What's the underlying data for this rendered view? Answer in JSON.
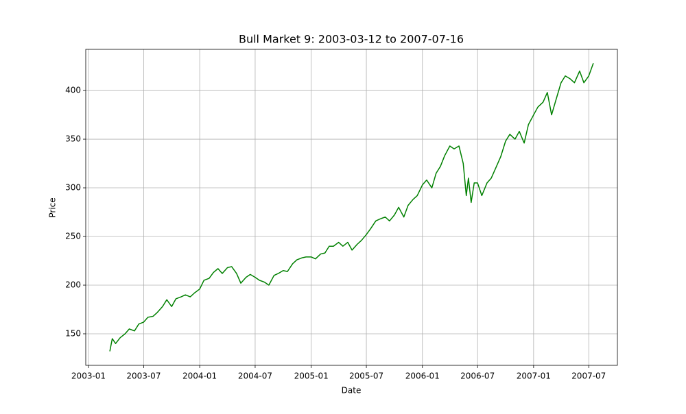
{
  "chart_data": {
    "type": "line",
    "title": "Bull Market 9: 2003-03-12 to 2007-07-16",
    "xlabel": "Date",
    "ylabel": "Price",
    "color": "#008000",
    "grid": true,
    "x": [
      "2003-03-12",
      "2003-03-20",
      "2003-03-31",
      "2003-04-15",
      "2003-05-01",
      "2003-05-15",
      "2003-06-01",
      "2003-06-15",
      "2003-07-01",
      "2003-07-15",
      "2003-08-01",
      "2003-08-15",
      "2003-09-01",
      "2003-09-15",
      "2003-10-01",
      "2003-10-15",
      "2003-11-01",
      "2003-11-15",
      "2003-12-01",
      "2003-12-15",
      "2004-01-01",
      "2004-01-15",
      "2004-02-01",
      "2004-02-15",
      "2004-03-01",
      "2004-03-15",
      "2004-04-01",
      "2004-04-15",
      "2004-05-01",
      "2004-05-15",
      "2004-06-01",
      "2004-06-15",
      "2004-07-01",
      "2004-07-15",
      "2004-08-01",
      "2004-08-15",
      "2004-09-01",
      "2004-09-15",
      "2004-10-01",
      "2004-10-15",
      "2004-11-01",
      "2004-11-15",
      "2004-12-01",
      "2004-12-15",
      "2005-01-01",
      "2005-01-15",
      "2005-02-01",
      "2005-02-15",
      "2005-03-01",
      "2005-03-15",
      "2005-04-01",
      "2005-04-15",
      "2005-05-01",
      "2005-05-15",
      "2005-06-01",
      "2005-06-15",
      "2005-07-01",
      "2005-07-15",
      "2005-08-01",
      "2005-08-15",
      "2005-09-01",
      "2005-09-15",
      "2005-10-01",
      "2005-10-15",
      "2005-11-01",
      "2005-11-15",
      "2005-12-01",
      "2005-12-15",
      "2006-01-01",
      "2006-01-15",
      "2006-02-01",
      "2006-02-15",
      "2006-03-01",
      "2006-03-15",
      "2006-04-01",
      "2006-04-15",
      "2006-05-01",
      "2006-05-15",
      "2006-05-25",
      "2006-06-01",
      "2006-06-10",
      "2006-06-20",
      "2006-07-01",
      "2006-07-15",
      "2006-08-01",
      "2006-08-15",
      "2006-09-01",
      "2006-09-15",
      "2006-10-01",
      "2006-10-15",
      "2006-11-01",
      "2006-11-15",
      "2006-12-01",
      "2006-12-15",
      "2007-01-01",
      "2007-01-15",
      "2007-02-01",
      "2007-02-15",
      "2007-03-01",
      "2007-03-15",
      "2007-04-01",
      "2007-04-15",
      "2007-05-01",
      "2007-05-15",
      "2007-06-01",
      "2007-06-15",
      "2007-07-01",
      "2007-07-16"
    ],
    "values": [
      132,
      145,
      140,
      146,
      150,
      155,
      153,
      160,
      162,
      167,
      168,
      172,
      178,
      185,
      178,
      186,
      188,
      190,
      188,
      192,
      196,
      205,
      207,
      213,
      217,
      212,
      218,
      219,
      212,
      202,
      208,
      211,
      208,
      205,
      203,
      200,
      210,
      212,
      215,
      214,
      222,
      226,
      228,
      229,
      229,
      227,
      232,
      233,
      240,
      240,
      244,
      240,
      244,
      236,
      242,
      246,
      252,
      258,
      266,
      268,
      270,
      266,
      272,
      280,
      270,
      282,
      288,
      292,
      303,
      308,
      300,
      315,
      322,
      333,
      343,
      340,
      343,
      325,
      292,
      310,
      285,
      305,
      305,
      292,
      305,
      310,
      322,
      332,
      348,
      355,
      350,
      358,
      346,
      365,
      375,
      383,
      388,
      398,
      375,
      390,
      408,
      415,
      412,
      408,
      420,
      408,
      415,
      428
    ],
    "xlim": [
      "2002-12-23",
      "2007-10-03"
    ],
    "xticks": [
      {
        "value": "2003-01-01",
        "label": "2003-01"
      },
      {
        "value": "2003-07-01",
        "label": "2003-07"
      },
      {
        "value": "2004-01-01",
        "label": "2004-01"
      },
      {
        "value": "2004-07-01",
        "label": "2004-07"
      },
      {
        "value": "2005-01-01",
        "label": "2005-01"
      },
      {
        "value": "2005-07-01",
        "label": "2005-07"
      },
      {
        "value": "2006-01-01",
        "label": "2006-01"
      },
      {
        "value": "2006-07-01",
        "label": "2006-07"
      },
      {
        "value": "2007-01-01",
        "label": "2007-01"
      },
      {
        "value": "2007-07-01",
        "label": "2007-07"
      }
    ],
    "ylim": [
      117.6,
      442.3
    ],
    "yticks": [
      150,
      200,
      250,
      300,
      350,
      400
    ]
  }
}
